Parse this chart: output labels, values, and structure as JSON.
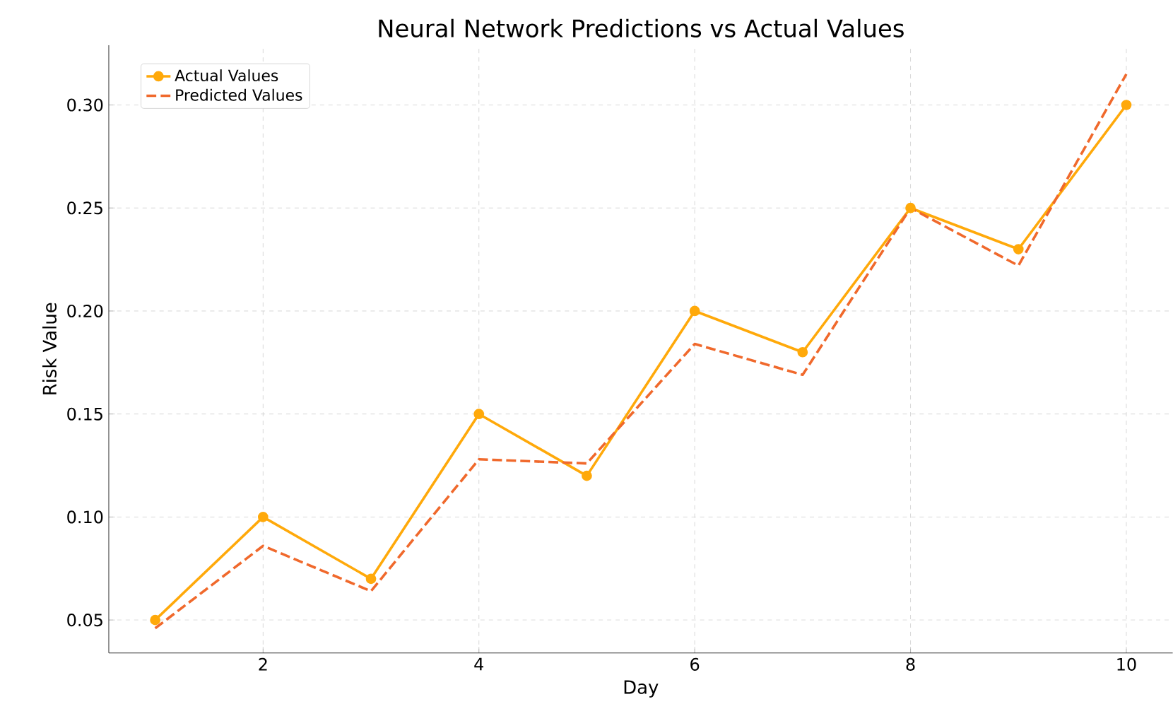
{
  "chart_data": {
    "type": "line",
    "title": "Neural Network Predictions vs Actual Values",
    "xlabel": "Day",
    "ylabel": "Risk Value",
    "x": [
      1,
      2,
      3,
      4,
      5,
      6,
      7,
      8,
      9,
      10
    ],
    "series": [
      {
        "name": "Actual Values",
        "color": "#ffa90a",
        "marker": "circle",
        "line_style": "solid",
        "values": [
          0.05,
          0.1,
          0.07,
          0.15,
          0.12,
          0.2,
          0.18,
          0.25,
          0.23,
          0.3
        ]
      },
      {
        "name": "Predicted Values",
        "color": "#f0692c",
        "marker": "none",
        "line_style": "dashed",
        "values": [
          0.046,
          0.086,
          0.064,
          0.128,
          0.126,
          0.184,
          0.169,
          0.25,
          0.222,
          0.315
        ]
      }
    ],
    "xlim": [
      0.57,
      10.43
    ],
    "ylim": [
      0.034,
      0.329
    ],
    "xticks": [
      2,
      4,
      6,
      8,
      10
    ],
    "yticks": [
      {
        "value": 0.05,
        "label": "0.05"
      },
      {
        "value": 0.1,
        "label": "0.10"
      },
      {
        "value": 0.15,
        "label": "0.15"
      },
      {
        "value": 0.2,
        "label": "0.20"
      },
      {
        "value": 0.25,
        "label": "0.25"
      },
      {
        "value": 0.3,
        "label": "0.30"
      }
    ],
    "grid": true,
    "legend": "top left"
  }
}
